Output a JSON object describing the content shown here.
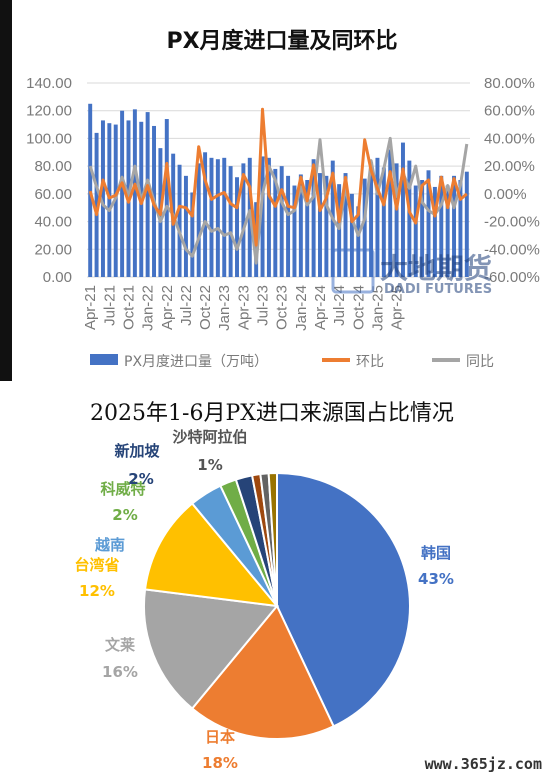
{
  "watermark": {
    "cn": "大地期货",
    "en": "DADI FUTURES"
  },
  "site": "www.365jz.com",
  "chart_data": [
    {
      "type": "bar+line",
      "title": "PX月度进口量及同环比",
      "x_tick_labels": [
        "Apr-21",
        "Jul-21",
        "Oct-21",
        "Jan-22",
        "Apr-22",
        "Jul-22",
        "Oct-22",
        "Jan-23",
        "Apr-23",
        "Jul-23",
        "Oct-23",
        "Jan-24",
        "Apr-24",
        "Jul-24",
        "Oct-24",
        "Jan-25",
        "Apr-25"
      ],
      "left_axis": {
        "ylim": [
          0,
          140
        ],
        "ticks": [
          "0.00",
          "20.00",
          "40.00",
          "60.00",
          "80.00",
          "100.00",
          "120.00",
          "140.00"
        ]
      },
      "right_axis": {
        "ylim": [
          -60,
          80
        ],
        "ticks": [
          "-60.00%",
          "-40.00%",
          "-20.00%",
          "0.00%",
          "20.00%",
          "40.00%",
          "60.00%",
          "80.00%"
        ]
      },
      "series": [
        {
          "name": "PX月度进口量（万吨）",
          "kind": "bar",
          "axis": "left",
          "color": "#4472C4",
          "values": [
            125,
            104,
            113,
            111,
            110,
            120,
            113,
            121,
            112,
            119,
            109,
            93,
            114,
            89,
            81,
            73,
            61,
            82,
            90,
            86,
            85,
            86,
            80,
            72,
            82,
            86,
            54,
            87,
            86,
            78,
            80,
            73,
            66,
            74,
            70,
            85,
            75,
            73,
            84,
            67,
            75,
            60,
            51,
            71,
            83,
            86,
            79,
            92,
            82,
            97,
            84,
            66,
            70,
            77,
            65,
            73,
            66,
            73,
            70,
            76
          ]
        },
        {
          "name": "环比",
          "kind": "line",
          "axis": "right",
          "color": "#ED7D31",
          "values": [
            2,
            -15,
            10,
            -3,
            -1,
            8,
            -6,
            7,
            -7,
            6,
            -8,
            -15,
            22,
            -22,
            -9,
            -10,
            -16,
            34,
            10,
            -4,
            -1,
            1,
            -7,
            -10,
            14,
            5,
            -37,
            61,
            -1,
            -9,
            3,
            -9,
            -10,
            12,
            -5,
            21,
            -12,
            -3,
            15,
            -20,
            12,
            -20,
            -15,
            39,
            17,
            4,
            -8,
            16,
            -11,
            18,
            -13,
            -21,
            6,
            10,
            -16,
            12,
            -10,
            11,
            -4,
            0
          ]
        },
        {
          "name": "同比",
          "kind": "line",
          "axis": "right",
          "color": "#A5A5A5",
          "values": [
            20,
            5,
            -8,
            -12,
            -3,
            12,
            -2,
            20,
            -5,
            10,
            -5,
            -20,
            -9,
            -15,
            -28,
            -40,
            -45,
            -32,
            -20,
            -27,
            -25,
            -30,
            -28,
            -40,
            -26,
            -12,
            -50,
            0,
            20,
            10,
            -6,
            -15,
            -12,
            5,
            -8,
            -2,
            39,
            -8,
            -18,
            -25,
            5,
            -18,
            -30,
            -18,
            24,
            0,
            18,
            40,
            -2,
            15,
            4,
            20,
            -6,
            -12,
            -15,
            -8,
            6,
            -10,
            6,
            36
          ]
        }
      ]
    },
    {
      "type": "pie",
      "title": "2025年1-6月PX进口来源国占比情况",
      "slices": [
        {
          "name": "韩国",
          "value": 43,
          "label_value": "43%",
          "color": "#4472C4",
          "label_color": "#4472C4"
        },
        {
          "name": "日本",
          "value": 18,
          "label_value": "18%",
          "color": "#ED7D31",
          "label_color": "#ED7D31"
        },
        {
          "name": "文莱",
          "value": 16,
          "label_value": "16%",
          "color": "#A5A5A5",
          "label_color": "#A5A5A5"
        },
        {
          "name": "台湾省",
          "value": 12,
          "label_value": "12%",
          "color": "#FFC000",
          "label_color": "#FFC000"
        },
        {
          "name": "越南",
          "value": 4,
          "label_value": "",
          "color": "#5B9BD5",
          "label_color": "#5B9BD5"
        },
        {
          "name": "科威特",
          "value": 2,
          "label_value": "2%",
          "color": "#70AD47",
          "label_color": "#70AD47"
        },
        {
          "name": "新加坡",
          "value": 2,
          "label_value": "2%",
          "color": "#264478",
          "label_color": "#264478"
        },
        {
          "name": "",
          "value": 1,
          "label_value": "",
          "color": "#9E480E",
          "label_color": "#9E480E"
        },
        {
          "name": "",
          "value": 1,
          "label_value": "",
          "color": "#636363",
          "label_color": "#636363"
        },
        {
          "name": "沙特阿拉伯",
          "value": 1,
          "label_value": "1%",
          "color": "#997300",
          "label_color": "#555555"
        }
      ]
    }
  ]
}
